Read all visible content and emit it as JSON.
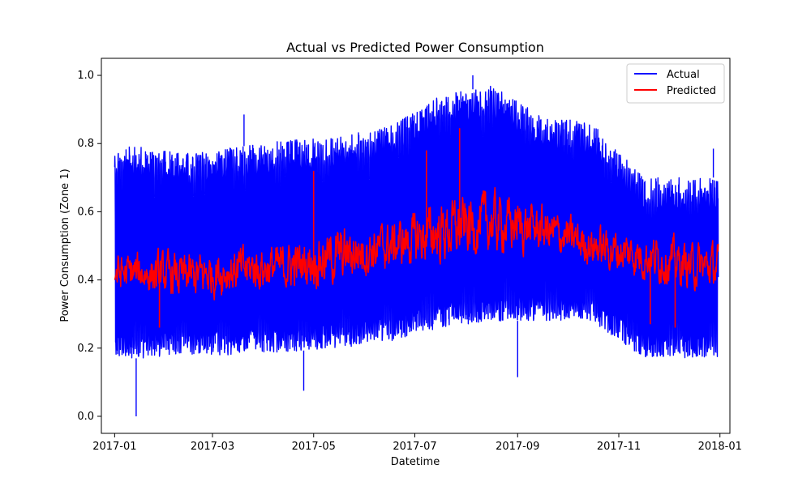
{
  "chart_data": {
    "type": "line",
    "title": "Actual vs Predicted Power Consumption",
    "xlabel": "Datetime",
    "ylabel": "Power Consumption (Zone 1)",
    "xlim": [
      "2016-12-24",
      "2018-01-07"
    ],
    "ylim": [
      -0.05,
      1.05
    ],
    "x_ticks": [
      "2017-01",
      "2017-03",
      "2017-05",
      "2017-07",
      "2017-09",
      "2017-11",
      "2018-01"
    ],
    "y_ticks": [
      "0.0",
      "0.2",
      "0.4",
      "0.6",
      "0.8",
      "1.0"
    ],
    "grid": false,
    "legend": "top-right",
    "series": [
      {
        "name": "Actual",
        "color": "#0000ff",
        "envelope": {
          "months": [
            "2017-01",
            "2017-02",
            "2017-03",
            "2017-04",
            "2017-05",
            "2017-06",
            "2017-07",
            "2017-08",
            "2017-09",
            "2017-10",
            "2017-11",
            "2017-12"
          ],
          "upper": [
            0.79,
            0.77,
            0.79,
            0.81,
            0.82,
            0.85,
            0.94,
            0.97,
            0.88,
            0.86,
            0.7,
            0.7
          ],
          "lower": [
            0.17,
            0.18,
            0.18,
            0.19,
            0.2,
            0.22,
            0.26,
            0.28,
            0.28,
            0.28,
            0.17,
            0.17
          ]
        },
        "extremes": [
          {
            "x": "2017-01-14",
            "y": 0.0
          },
          {
            "x": "2017-08-05",
            "y": 1.0
          },
          {
            "x": "2017-04-25",
            "y": 0.075
          },
          {
            "x": "2017-09-01",
            "y": 0.115
          },
          {
            "x": "2017-12-28",
            "y": 0.785
          },
          {
            "x": "2017-03-20",
            "y": 0.885
          }
        ]
      },
      {
        "name": "Predicted",
        "color": "#ff0000",
        "trend": {
          "months": [
            "2017-01",
            "2017-02",
            "2017-03",
            "2017-04",
            "2017-05",
            "2017-06",
            "2017-07",
            "2017-08",
            "2017-09",
            "2017-10",
            "2017-11",
            "2017-12"
          ],
          "mean": [
            0.42,
            0.41,
            0.43,
            0.44,
            0.47,
            0.5,
            0.54,
            0.57,
            0.55,
            0.5,
            0.47,
            0.44
          ],
          "range": [
            0.08,
            0.09,
            0.09,
            0.09,
            0.11,
            0.09,
            0.12,
            0.12,
            0.09,
            0.08,
            0.09,
            0.09
          ]
        },
        "extremes": [
          {
            "x": "2017-07-28",
            "y": 0.845
          },
          {
            "x": "2017-07-08",
            "y": 0.78
          },
          {
            "x": "2017-05-01",
            "y": 0.72
          },
          {
            "x": "2017-11-20",
            "y": 0.27
          },
          {
            "x": "2017-12-05",
            "y": 0.26
          },
          {
            "x": "2017-01-28",
            "y": 0.26
          }
        ]
      }
    ]
  }
}
